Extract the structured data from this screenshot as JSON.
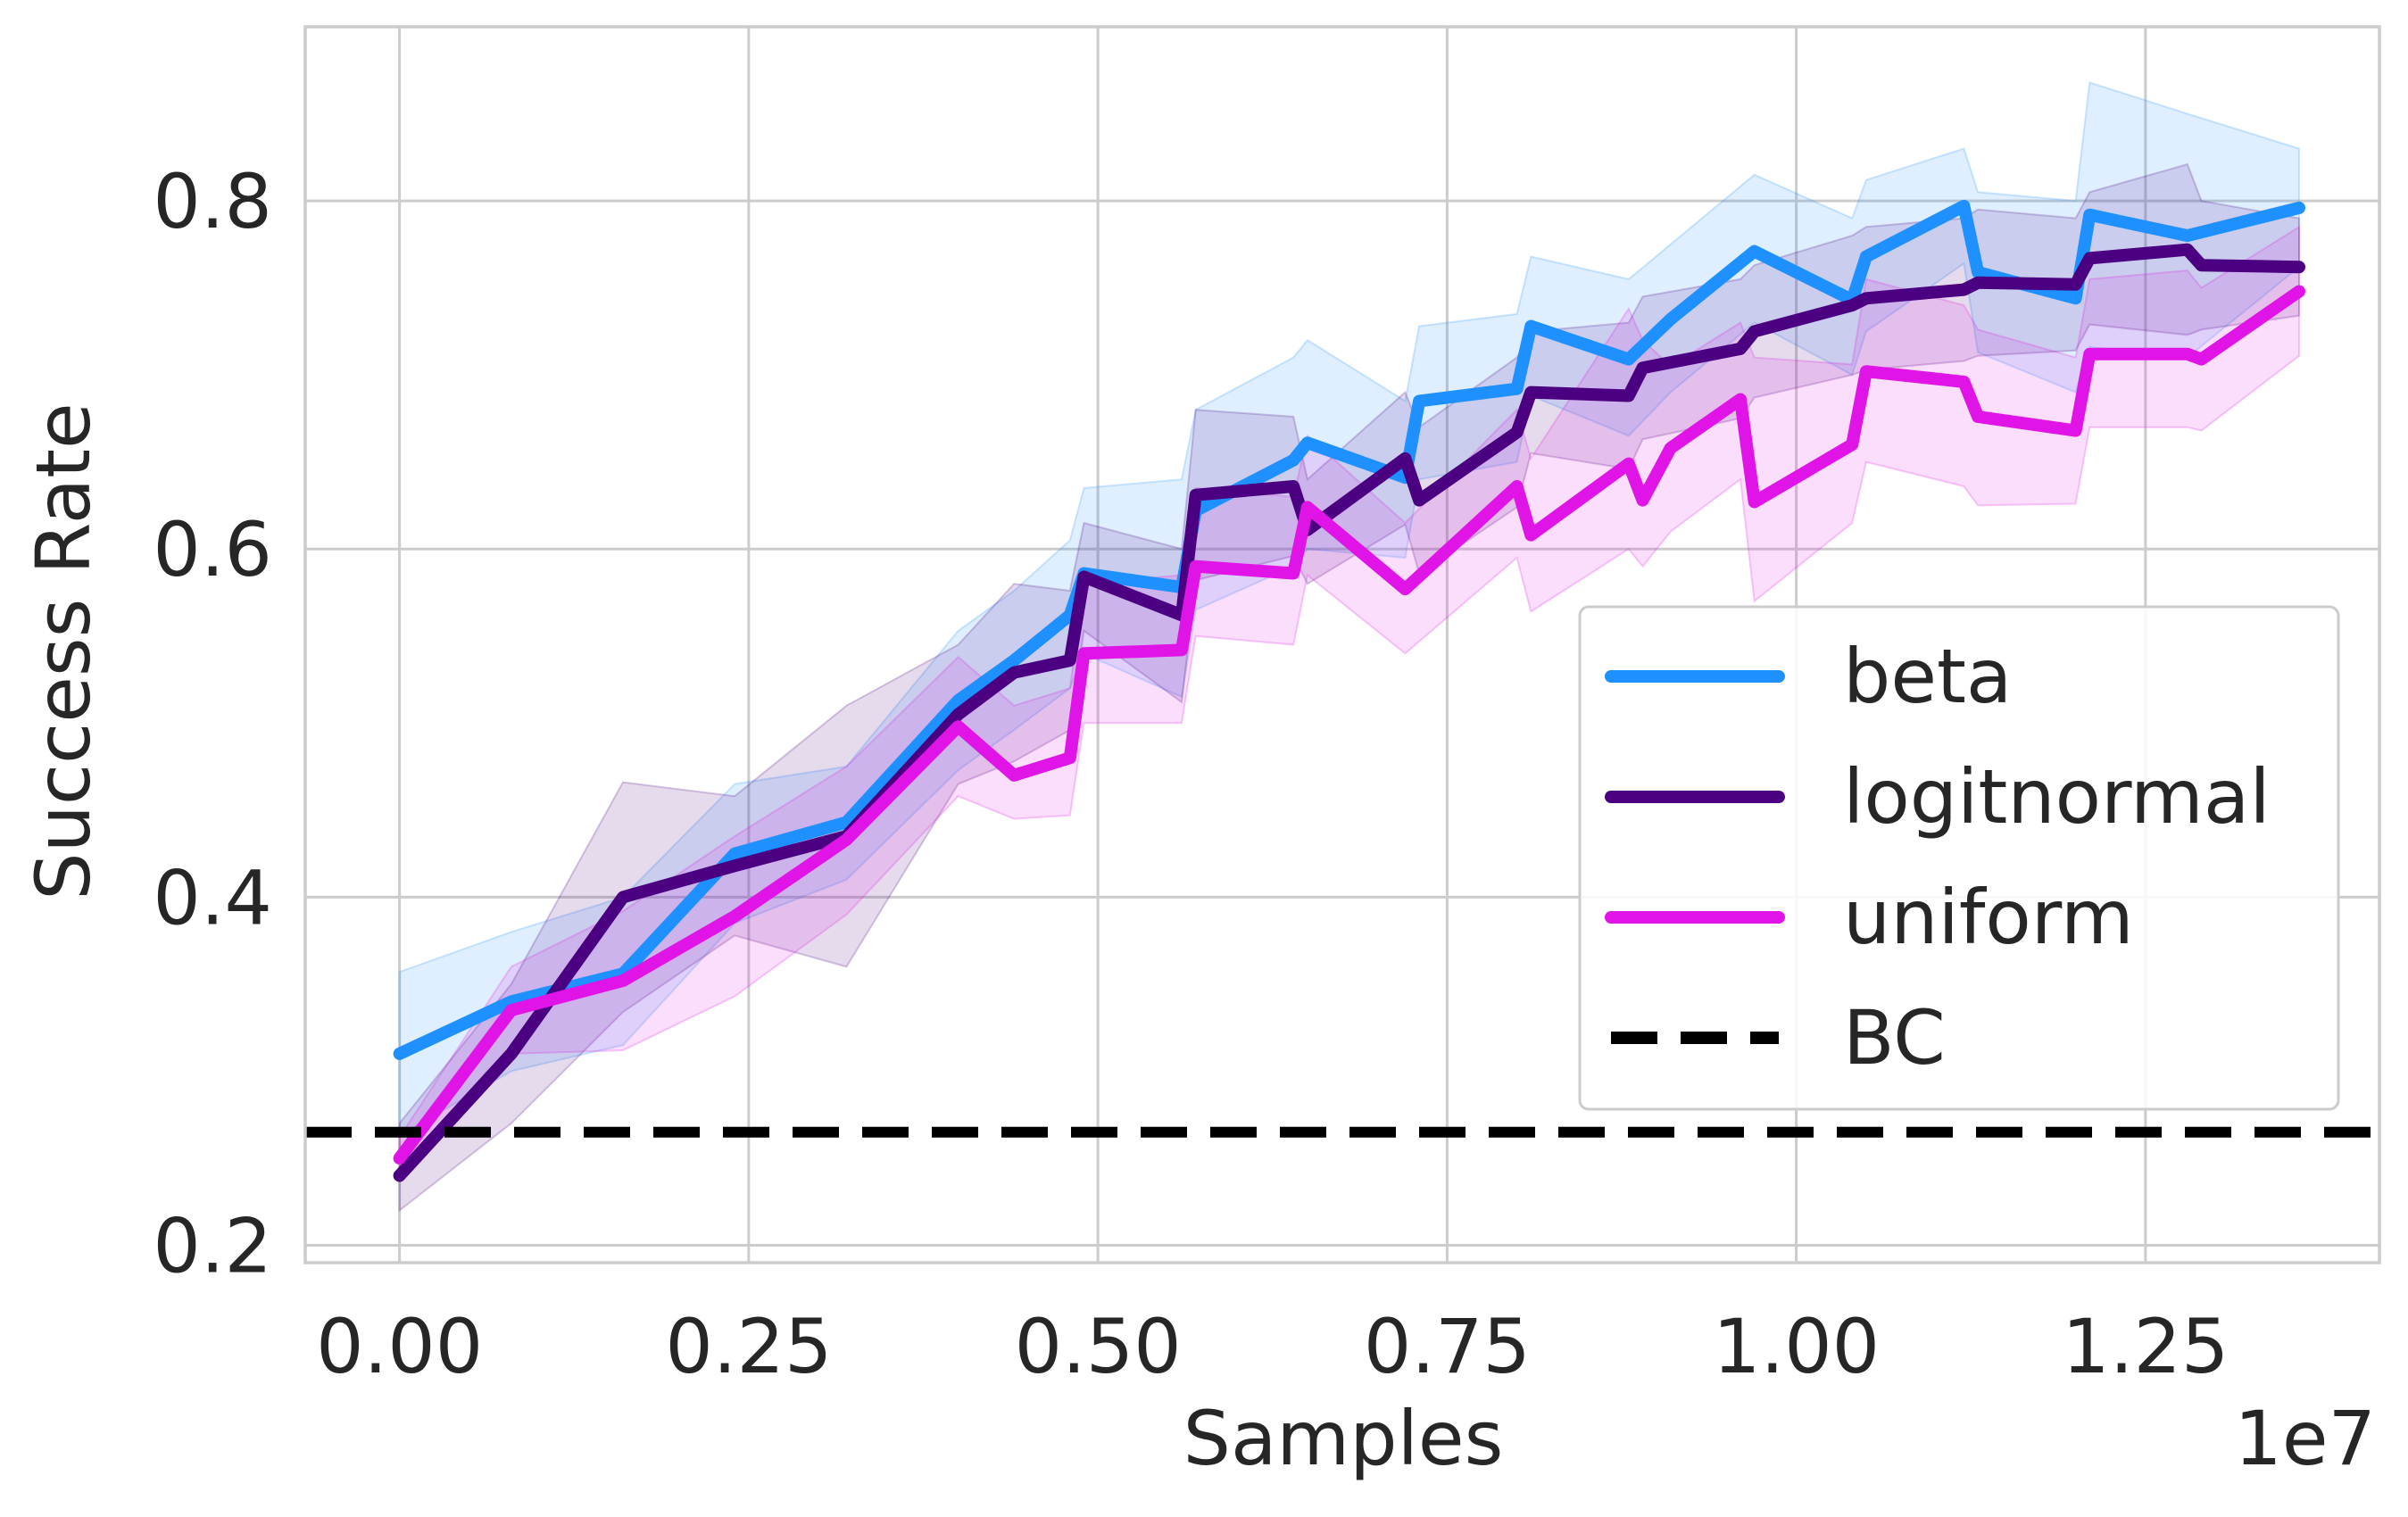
{
  "chart_data": {
    "type": "line",
    "title": "",
    "xlabel": "Samples",
    "ylabel": "Success Rate",
    "x_offset_label": "1e7",
    "xlim": [
      -0.0675,
      1.4175
    ],
    "ylim": [
      0.19,
      0.9
    ],
    "xticks": [
      0.0,
      0.25,
      0.5,
      0.75,
      1.0,
      1.25
    ],
    "xtick_labels": [
      "0.00",
      "0.25",
      "0.50",
      "0.75",
      "1.00",
      "1.25"
    ],
    "yticks": [
      0.2,
      0.4,
      0.6,
      0.8
    ],
    "ytick_labels": [
      "0.2",
      "0.4",
      "0.6",
      "0.8"
    ],
    "grid": true,
    "legend_position": "lower-right",
    "series": [
      {
        "name": "beta",
        "color": "#1e90ff",
        "x": [
          0.0,
          0.08,
          0.16,
          0.24,
          0.32,
          0.4,
          0.44,
          0.48,
          0.49,
          0.56,
          0.57,
          0.64,
          0.65,
          0.72,
          0.73,
          0.8,
          0.81,
          0.88,
          0.91,
          0.97,
          1.04,
          1.05,
          1.12,
          1.13,
          1.2,
          1.21,
          1.28,
          1.36
        ],
        "values": [
          0.31,
          0.34,
          0.356,
          0.425,
          0.443,
          0.513,
          0.536,
          0.562,
          0.586,
          0.578,
          0.622,
          0.651,
          0.661,
          0.641,
          0.685,
          0.692,
          0.728,
          0.709,
          0.732,
          0.771,
          0.743,
          0.768,
          0.797,
          0.759,
          0.744,
          0.792,
          0.78,
          0.796
        ],
        "upper": [
          0.357,
          0.38,
          0.4,
          0.465,
          0.475,
          0.553,
          0.576,
          0.605,
          0.635,
          0.64,
          0.68,
          0.71,
          0.72,
          0.685,
          0.728,
          0.735,
          0.768,
          0.755,
          0.775,
          0.815,
          0.79,
          0.812,
          0.83,
          0.805,
          0.8,
          0.868,
          0.85,
          0.83
        ],
        "lower": [
          0.263,
          0.3,
          0.315,
          0.385,
          0.41,
          0.473,
          0.496,
          0.52,
          0.54,
          0.515,
          0.565,
          0.59,
          0.6,
          0.595,
          0.64,
          0.65,
          0.688,
          0.665,
          0.69,
          0.73,
          0.7,
          0.725,
          0.764,
          0.713,
          0.69,
          0.716,
          0.71,
          0.762
        ]
      },
      {
        "name": "logitnormal",
        "color": "#4b0082",
        "x": [
          0.0,
          0.08,
          0.16,
          0.24,
          0.32,
          0.4,
          0.44,
          0.48,
          0.49,
          0.56,
          0.57,
          0.64,
          0.65,
          0.72,
          0.73,
          0.8,
          0.81,
          0.88,
          0.89,
          0.96,
          0.97,
          1.04,
          1.05,
          1.12,
          1.13,
          1.2,
          1.21,
          1.28,
          1.29,
          1.36
        ],
        "values": [
          0.24,
          0.31,
          0.4,
          0.418,
          0.435,
          0.505,
          0.529,
          0.536,
          0.584,
          0.562,
          0.631,
          0.636,
          0.611,
          0.652,
          0.628,
          0.667,
          0.69,
          0.688,
          0.704,
          0.715,
          0.725,
          0.74,
          0.744,
          0.749,
          0.753,
          0.752,
          0.767,
          0.772,
          0.763,
          0.762
        ],
        "upper": [
          0.27,
          0.35,
          0.466,
          0.458,
          0.51,
          0.545,
          0.58,
          0.576,
          0.615,
          0.6,
          0.68,
          0.676,
          0.64,
          0.69,
          0.67,
          0.71,
          0.725,
          0.73,
          0.745,
          0.755,
          0.763,
          0.78,
          0.785,
          0.79,
          0.795,
          0.79,
          0.805,
          0.821,
          0.8,
          0.79
        ],
        "lower": [
          0.22,
          0.27,
          0.334,
          0.378,
          0.36,
          0.465,
          0.478,
          0.496,
          0.553,
          0.512,
          0.582,
          0.596,
          0.58,
          0.614,
          0.586,
          0.624,
          0.655,
          0.646,
          0.663,
          0.675,
          0.687,
          0.7,
          0.703,
          0.708,
          0.711,
          0.714,
          0.729,
          0.723,
          0.726,
          0.734
        ]
      },
      {
        "name": "uniform",
        "color": "#e014e6",
        "x": [
          0.0,
          0.08,
          0.16,
          0.24,
          0.32,
          0.4,
          0.44,
          0.48,
          0.49,
          0.56,
          0.57,
          0.64,
          0.65,
          0.72,
          0.8,
          0.81,
          0.88,
          0.89,
          0.91,
          0.96,
          0.97,
          1.04,
          1.05,
          1.12,
          1.13,
          1.2,
          1.21,
          1.28,
          1.29,
          1.36
        ],
        "values": [
          0.25,
          0.335,
          0.352,
          0.389,
          0.433,
          0.498,
          0.47,
          0.48,
          0.54,
          0.542,
          0.59,
          0.586,
          0.624,
          0.577,
          0.636,
          0.608,
          0.649,
          0.628,
          0.658,
          0.686,
          0.627,
          0.66,
          0.702,
          0.696,
          0.676,
          0.668,
          0.712,
          0.712,
          0.709,
          0.748
        ],
        "upper": [
          0.262,
          0.36,
          0.392,
          0.435,
          0.475,
          0.538,
          0.51,
          0.52,
          0.58,
          0.585,
          0.635,
          0.63,
          0.665,
          0.615,
          0.68,
          0.652,
          0.738,
          0.72,
          0.705,
          0.73,
          0.71,
          0.706,
          0.755,
          0.74,
          0.726,
          0.71,
          0.755,
          0.76,
          0.75,
          0.785
        ],
        "lower": [
          0.238,
          0.31,
          0.312,
          0.343,
          0.39,
          0.458,
          0.445,
          0.447,
          0.5,
          0.5,
          0.55,
          0.545,
          0.585,
          0.54,
          0.595,
          0.564,
          0.6,
          0.59,
          0.61,
          0.64,
          0.57,
          0.615,
          0.65,
          0.636,
          0.625,
          0.626,
          0.67,
          0.67,
          0.668,
          0.711
        ]
      },
      {
        "name": "BC",
        "type": "hline",
        "color": "#000000",
        "value": 0.265
      }
    ]
  }
}
